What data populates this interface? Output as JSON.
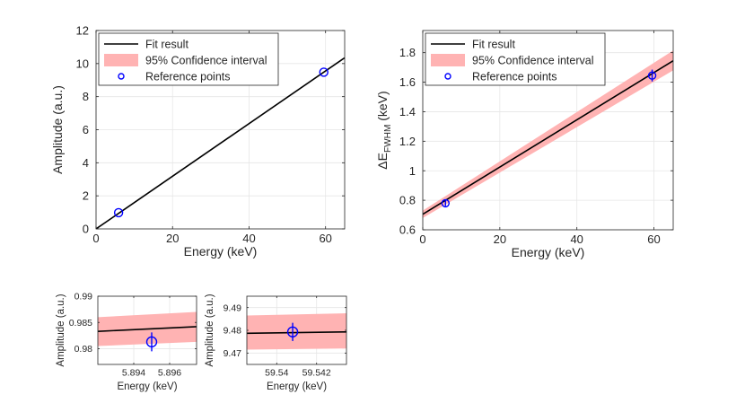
{
  "colors": {
    "fit": "#000000",
    "band": "#ffb3b3",
    "points": "#0000ff",
    "grid": "#e6e6e6",
    "axis": "#262626"
  },
  "chart_data": [
    {
      "id": "amp_main",
      "type": "line",
      "xlabel": "Energy (keV)",
      "ylabel": "Amplitude (a.u.)",
      "xlim": [
        0,
        65
      ],
      "ylim": [
        0,
        12
      ],
      "xticks": [
        0,
        20,
        40,
        60
      ],
      "yticks": [
        0,
        2,
        4,
        6,
        8,
        10,
        12
      ],
      "xtick_labels": [
        "0",
        "20",
        "40",
        "60"
      ],
      "ytick_labels": [
        "0",
        "2",
        "4",
        "6",
        "8",
        "10",
        "12"
      ],
      "grid": true,
      "legend": "top-left",
      "legend_entries": [
        "Fit result",
        "95% Confidence interval",
        "Reference points"
      ],
      "fit": {
        "x": [
          0,
          65
        ],
        "y": [
          0.0,
          10.35
        ]
      },
      "band": {
        "x": [
          0,
          65
        ],
        "lower": [
          0.0,
          10.35
        ],
        "upper": [
          0.0,
          10.35
        ]
      },
      "points": [
        {
          "x": 5.895,
          "y": 0.9813,
          "err": 0.0
        },
        {
          "x": 59.541,
          "y": 9.4792,
          "err": 0.0
        }
      ]
    },
    {
      "id": "fwhm_main",
      "type": "line",
      "xlabel": "Energy (keV)",
      "ylabel": "ΔE",
      "ylabel_sub": "FWHM",
      "ylabel_suffix": " (keV)",
      "xlim": [
        0,
        65
      ],
      "ylim": [
        0.6,
        1.95
      ],
      "xticks": [
        0,
        20,
        40,
        60
      ],
      "yticks": [
        0.6,
        0.8,
        1.0,
        1.2,
        1.4,
        1.6,
        1.8
      ],
      "xtick_labels": [
        "0",
        "20",
        "40",
        "60"
      ],
      "ytick_labels": [
        "0.6",
        "0.8",
        "1",
        "1.2",
        "1.4",
        "1.6",
        "1.8"
      ],
      "grid": true,
      "legend": "top-left",
      "legend_entries": [
        "Fit result",
        "95% Confidence interval",
        "Reference points"
      ],
      "fit": {
        "x": [
          0,
          65
        ],
        "y": [
          0.705,
          1.745
        ]
      },
      "band": {
        "x": [
          0,
          65
        ],
        "lower": [
          0.68,
          1.68
        ],
        "upper": [
          0.73,
          1.815
        ]
      },
      "points": [
        {
          "x": 5.895,
          "y": 0.78,
          "err": 0.02
        },
        {
          "x": 59.541,
          "y": 1.645,
          "err": 0.04
        }
      ]
    },
    {
      "id": "amp_zoom_low",
      "type": "line",
      "xlabel": "Energy (keV)",
      "ylabel": "Amplitude (a.u.)",
      "xlim": [
        5.892,
        5.8975
      ],
      "ylim": [
        0.977,
        0.99
      ],
      "xticks": [
        5.894,
        5.896
      ],
      "yticks": [
        0.98,
        0.985,
        0.99
      ],
      "xtick_labels": [
        "5.894",
        "5.896"
      ],
      "ytick_labels": [
        "0.98",
        "0.985",
        "0.99"
      ],
      "grid": true,
      "fit": {
        "x": [
          5.892,
          5.8975
        ],
        "y": [
          0.9833,
          0.9842
        ]
      },
      "band": {
        "x": [
          5.892,
          5.8975
        ],
        "lower": [
          0.9805,
          0.9813
        ],
        "upper": [
          0.986,
          0.987
        ]
      },
      "points": [
        {
          "x": 5.895,
          "y": 0.9813,
          "err": 0.0018
        }
      ]
    },
    {
      "id": "amp_zoom_high",
      "type": "line",
      "xlabel": "Energy (keV)",
      "ylabel": "Amplitude (a.u.)",
      "xlim": [
        59.5385,
        59.5435
      ],
      "ylim": [
        9.465,
        9.495
      ],
      "xticks": [
        59.54,
        59.542
      ],
      "yticks": [
        9.47,
        9.48,
        9.49
      ],
      "xtick_labels": [
        "59.54",
        "59.542"
      ],
      "ytick_labels": [
        "9.47",
        "9.48",
        "9.49"
      ],
      "grid": true,
      "fit": {
        "x": [
          59.5385,
          59.5435
        ],
        "y": [
          9.4787,
          9.4793
        ]
      },
      "band": {
        "x": [
          59.5385,
          59.5435
        ],
        "lower": [
          9.4715,
          9.472
        ],
        "upper": [
          9.4865,
          9.4875
        ]
      },
      "points": [
        {
          "x": 59.5408,
          "y": 9.4793,
          "err": 0.004
        }
      ]
    }
  ]
}
